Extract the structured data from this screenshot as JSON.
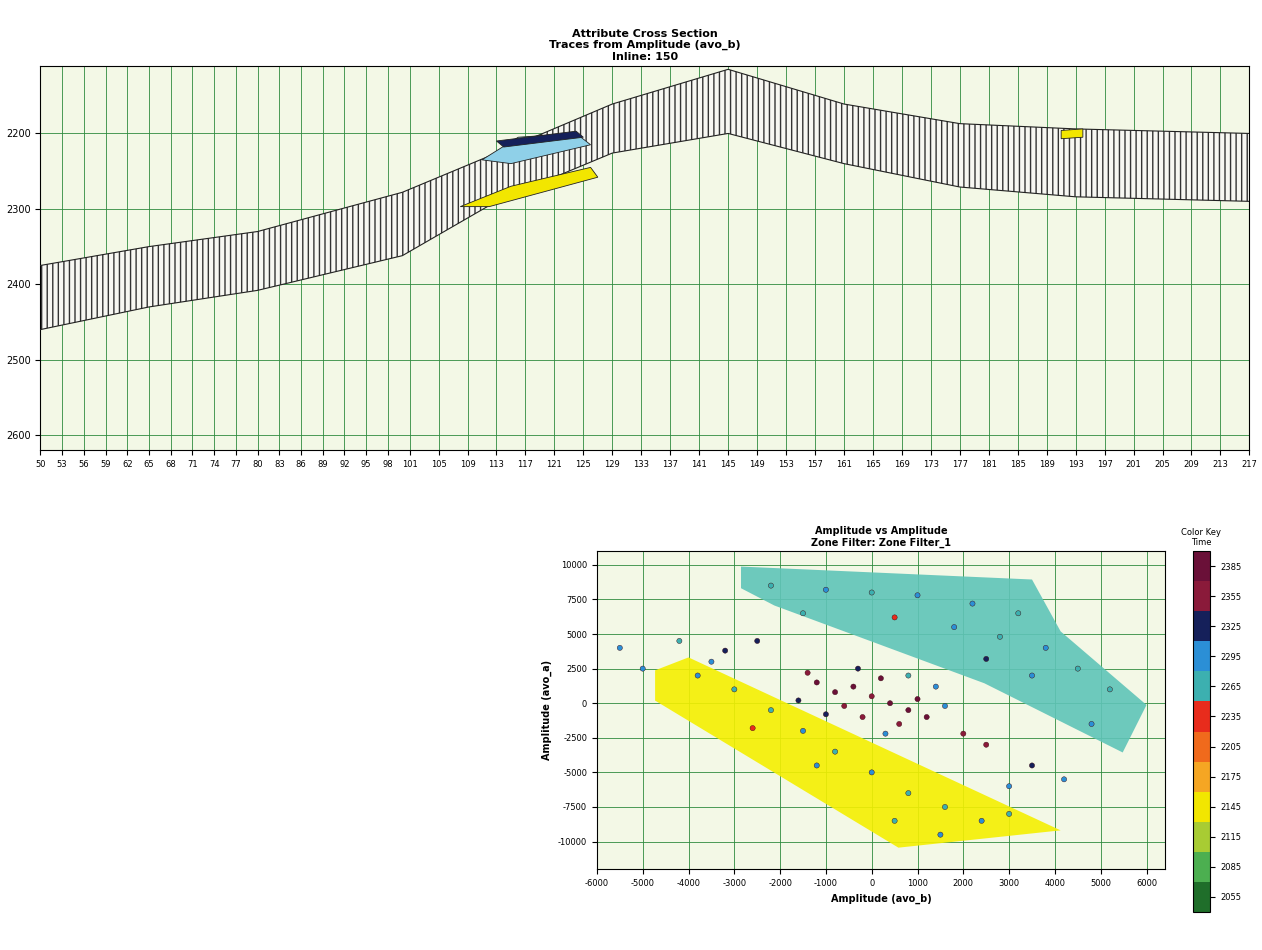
{
  "chart_data": [
    {
      "type": "section",
      "title": "Attribute Cross Section\nTraces from Amplitude (avo_b)\nInline: 150",
      "x": [
        50,
        65,
        80,
        100,
        113,
        129,
        145,
        161,
        177,
        193,
        217
      ],
      "top": [
        2375,
        2350,
        2330,
        2278,
        2226,
        2161,
        2115,
        2161,
        2187,
        2194,
        2200
      ],
      "base": [
        2460,
        2430,
        2408,
        2362,
        2290,
        2226,
        2200,
        2240,
        2271,
        2284,
        2290
      ],
      "anomalies": [
        {
          "color": "#f2e600",
          "x": [
            108,
            115,
            126,
            127,
            112
          ],
          "t": [
            2297,
            2270,
            2245,
            2258,
            2297
          ]
        },
        {
          "color": "#8fd0e8",
          "x": [
            111,
            116,
            124,
            126,
            115
          ],
          "t": [
            2235,
            2205,
            2200,
            2215,
            2240
          ]
        },
        {
          "color": "#15205a",
          "x": [
            113,
            124,
            125,
            114
          ],
          "t": [
            2210,
            2197,
            2205,
            2218
          ]
        },
        {
          "color": "#f2e600",
          "x": [
            191,
            194,
            194,
            191
          ],
          "t": [
            2196,
            2194,
            2205,
            2207
          ]
        }
      ],
      "xlim": [
        50,
        217
      ],
      "ylim": [
        2620,
        2110
      ],
      "xticks": [
        50,
        53,
        56,
        59,
        62,
        65,
        68,
        71,
        74,
        77,
        80,
        83,
        86,
        89,
        92,
        95,
        98,
        101,
        105,
        109,
        113,
        117,
        121,
        125,
        129,
        133,
        137,
        141,
        145,
        149,
        153,
        157,
        161,
        165,
        169,
        173,
        177,
        181,
        185,
        189,
        193,
        197,
        201,
        205,
        209,
        213,
        217
      ],
      "yticks": [
        2200,
        2300,
        2400,
        2500,
        2600
      ],
      "grid": true
    },
    {
      "type": "scatter",
      "title": "Amplitude vs Amplitude\nZone Filter: Zone Filter_1",
      "x_label": "Amplitude (avo_b)",
      "y_label": "Amplitude (avo_a)",
      "x": [
        -1200,
        -800,
        -400,
        0,
        400,
        800,
        -600,
        200,
        1000,
        -200,
        600,
        -1000,
        1200,
        -1600,
        1600,
        -300,
        300,
        1400,
        -1400,
        800,
        -2200,
        -1000,
        0,
        1000,
        2200,
        3200,
        -1500,
        500,
        1800,
        2800,
        3800,
        4500,
        5200,
        3500,
        2500,
        4800,
        -3800,
        -3000,
        -2200,
        -1500,
        -800,
        0,
        800,
        1600,
        2400,
        -3500,
        -2600,
        -1200,
        500,
        1500,
        3000,
        -5500,
        -5000,
        -4200,
        2500,
        3500,
        4200,
        3000,
        -2500,
        -3200,
        2000
      ],
      "y": [
        1500,
        800,
        1200,
        500,
        0,
        -500,
        -200,
        1800,
        300,
        -1000,
        -1500,
        -800,
        -1000,
        200,
        -200,
        2500,
        -2200,
        1200,
        2200,
        2000,
        8500,
        8200,
        8000,
        7800,
        7200,
        6500,
        6500,
        6200,
        5500,
        4800,
        4000,
        2500,
        1000,
        2000,
        3200,
        -1500,
        2000,
        1000,
        -500,
        -2000,
        -3500,
        -5000,
        -6500,
        -7500,
        -8500,
        3000,
        -1800,
        -4500,
        -8500,
        -9500,
        -8000,
        4000,
        2500,
        4500,
        -3000,
        -4500,
        -5500,
        -6000,
        4500,
        3800,
        -2200
      ],
      "time": [
        2380,
        2370,
        2390,
        2360,
        2385,
        2375,
        2350,
        2392,
        2380,
        2365,
        2340,
        2330,
        2390,
        2320,
        2300,
        2310,
        2290,
        2300,
        2340,
        2260,
        2270,
        2290,
        2260,
        2280,
        2300,
        2270,
        2250,
        2240,
        2280,
        2260,
        2300,
        2270,
        2250,
        2290,
        2330,
        2280,
        2280,
        2250,
        2270,
        2300,
        2260,
        2290,
        2270,
        2250,
        2280,
        2300,
        2240,
        2280,
        2260,
        2300,
        2270,
        2300,
        2280,
        2260,
        2350,
        2320,
        2300,
        2280,
        2320,
        2330,
        2360
      ],
      "zones": [
        {
          "color": "#5fc4b8",
          "x": [
            -2854,
            3500,
            4125,
            6000,
            5480,
            2460,
            -2125,
            -2854
          ],
          "y": [
            9875,
            8940,
            5190,
            -125,
            -3560,
            1440,
            7060,
            8310
          ]
        },
        {
          "color": "#f5f000",
          "x": [
            -4730,
            -4000,
            4125,
            583,
            -4730
          ],
          "y": [
            2375,
            3310,
            -9190,
            -10440,
            190
          ]
        }
      ],
      "colorbar": {
        "title": "Color Key\nTime",
        "range": [
          2040,
          2400
        ],
        "ticks": [
          2055,
          2085,
          2115,
          2145,
          2175,
          2205,
          2235,
          2265,
          2295,
          2325,
          2355,
          2385
        ],
        "colors": [
          "#1f6e2a",
          "#4caf50",
          "#a8cc33",
          "#f2e600",
          "#f5a623",
          "#f06a1c",
          "#e82c1c",
          "#3cb0b0",
          "#2b8fd6",
          "#15205a",
          "#8a1a3a",
          "#6a1038"
        ]
      },
      "xlim": [
        -6000,
        6400
      ],
      "ylim": [
        -12000,
        11000
      ],
      "xticks": [
        -6000,
        -5000,
        -4000,
        -3000,
        -2000,
        -1000,
        0,
        1000,
        2000,
        3000,
        4000,
        5000,
        6000
      ],
      "yticks": [
        -10000,
        -7500,
        -5000,
        -2500,
        0,
        2500,
        5000,
        7500,
        10000
      ],
      "grid": true
    }
  ]
}
